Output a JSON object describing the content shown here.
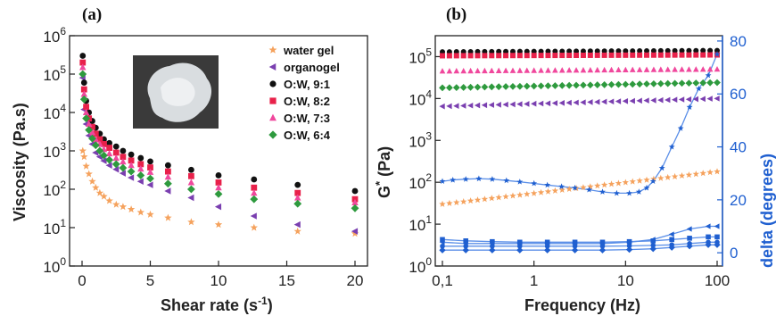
{
  "chart_data": [
    {
      "panel_label": "(a)",
      "type": "scatter",
      "xlabel": "Shear rate (s",
      "xlabel_sup": "-1",
      "xlabel_close": ")",
      "ylabel": "Viscosity (Pa.s)",
      "xlim": [
        0,
        20
      ],
      "ylim_log10": [
        0,
        6
      ],
      "yscale": "log",
      "x_ticks": [
        "0",
        "5",
        "10",
        "15",
        "20"
      ],
      "y_ticks": [
        {
          "base": "10",
          "exp": "0"
        },
        {
          "base": "10",
          "exp": "1"
        },
        {
          "base": "10",
          "exp": "2"
        },
        {
          "base": "10",
          "exp": "3"
        },
        {
          "base": "10",
          "exp": "4"
        },
        {
          "base": "10",
          "exp": "5"
        },
        {
          "base": "10",
          "exp": "6"
        }
      ],
      "legend_position": "top-right",
      "inset_photo": "gel-photo",
      "series": [
        {
          "name": "water gel",
          "color": "#f5a25d",
          "marker": "star",
          "x": [
            0.05,
            0.15,
            0.3,
            0.5,
            0.75,
            1.0,
            1.3,
            1.6,
            2.0,
            2.5,
            3.0,
            3.6,
            4.3,
            5.0,
            6.3,
            8.0,
            10.0,
            12.6,
            15.8,
            20.0
          ],
          "y": [
            1000,
            700,
            400,
            250,
            160,
            110,
            80,
            65,
            50,
            40,
            35,
            30,
            25,
            22,
            18,
            14,
            12,
            10,
            8,
            7
          ]
        },
        {
          "name": "organogel",
          "color": "#7a3fb0",
          "marker": "triangle-left",
          "x": [
            0.05,
            0.15,
            0.3,
            0.5,
            0.75,
            1.0,
            1.3,
            1.6,
            2.0,
            2.5,
            3.0,
            3.6,
            4.3,
            5.0,
            6.3,
            8.0,
            10.0,
            12.6,
            15.8,
            20.0
          ],
          "y": [
            80000,
            12000,
            5000,
            2500,
            1500,
            900,
            700,
            550,
            420,
            330,
            260,
            200,
            160,
            130,
            90,
            60,
            35,
            20,
            12,
            8
          ]
        },
        {
          "name": "O:W, 9:1",
          "color": "#111111",
          "marker": "circle",
          "x": [
            0.05,
            0.15,
            0.3,
            0.5,
            0.75,
            1.0,
            1.3,
            1.6,
            2.0,
            2.5,
            3.0,
            3.6,
            4.3,
            5.0,
            6.3,
            8.0,
            10.0,
            12.6,
            15.8,
            20.0
          ],
          "y": [
            300000,
            60000,
            20000,
            10000,
            6000,
            4000,
            2800,
            2000,
            1600,
            1300,
            1000,
            800,
            650,
            530,
            420,
            320,
            230,
            180,
            130,
            90
          ]
        },
        {
          "name": "O:W, 8:2",
          "color": "#e8214a",
          "marker": "square",
          "x": [
            0.05,
            0.15,
            0.3,
            0.5,
            0.75,
            1.0,
            1.3,
            1.6,
            2.0,
            2.5,
            3.0,
            3.6,
            4.3,
            5.0,
            6.3,
            8.0,
            10.0,
            12.6,
            15.8,
            20.0
          ],
          "y": [
            200000,
            40000,
            14000,
            7000,
            4200,
            2800,
            2000,
            1500,
            1200,
            900,
            700,
            560,
            450,
            370,
            290,
            220,
            150,
            110,
            80,
            55
          ]
        },
        {
          "name": "O:W, 7:3",
          "color": "#f0489d",
          "marker": "triangle-up",
          "x": [
            0.05,
            0.15,
            0.3,
            0.5,
            0.75,
            1.0,
            1.3,
            1.6,
            2.0,
            2.5,
            3.0,
            3.6,
            4.3,
            5.0,
            6.3,
            8.0,
            10.0,
            12.6,
            15.8,
            20.0
          ],
          "y": [
            150000,
            30000,
            10000,
            5000,
            3000,
            2000,
            1500,
            1100,
            850,
            650,
            520,
            420,
            340,
            280,
            210,
            150,
            110,
            80,
            60,
            45
          ]
        },
        {
          "name": "O:W, 6:4",
          "color": "#2e9a3e",
          "marker": "diamond",
          "x": [
            0.05,
            0.15,
            0.3,
            0.5,
            0.75,
            1.0,
            1.3,
            1.6,
            2.0,
            2.5,
            3.0,
            3.6,
            4.3,
            5.0,
            6.3,
            8.0,
            10.0,
            12.6,
            15.8,
            20.0
          ],
          "y": [
            100000,
            22000,
            7000,
            3500,
            2100,
            1400,
            1000,
            760,
            580,
            450,
            360,
            290,
            230,
            190,
            140,
            100,
            75,
            55,
            42,
            32
          ]
        }
      ]
    },
    {
      "panel_label": "(b)",
      "type": "scatter",
      "xlabel": "Frequency (Hz)",
      "ylabel": "G",
      "ylabel_sup": "*",
      "ylabel_unit": "(Pa)",
      "y2label": "delta (degrees)",
      "xscale": "log",
      "yscale": "log",
      "xlim": [
        0.1,
        100
      ],
      "ylim_log10": [
        0,
        5.5
      ],
      "y2lim": [
        -5,
        82
      ],
      "x_ticks": [
        "0,1",
        "1",
        "10",
        "100"
      ],
      "y_ticks": [
        {
          "base": "10",
          "exp": "0"
        },
        {
          "base": "10",
          "exp": "1"
        },
        {
          "base": "10",
          "exp": "2"
        },
        {
          "base": "10",
          "exp": "3"
        },
        {
          "base": "10",
          "exp": "4"
        },
        {
          "base": "10",
          "exp": "5"
        }
      ],
      "y2_ticks": [
        "0",
        "20",
        "40",
        "60",
        "80"
      ],
      "g_series": [
        {
          "color": "#111111",
          "marker": "circle",
          "value": 130000,
          "end": 140000
        },
        {
          "color": "#e8214a",
          "marker": "square",
          "value": 105000,
          "end": 110000
        },
        {
          "color": "#f0489d",
          "marker": "triangle-up",
          "value": 45000,
          "end": 50000
        },
        {
          "color": "#2e9a3e",
          "marker": "diamond",
          "value": 18000,
          "end": 24000
        },
        {
          "color": "#7a3fb0",
          "marker": "triangle-left",
          "value": 6500,
          "end": 10000
        },
        {
          "color": "#f5a25d",
          "marker": "star",
          "value": 30,
          "end": 180
        }
      ],
      "delta_series": [
        {
          "color": "#1f5fd0",
          "marker": "star",
          "x": [
            0.1,
            0.13,
            0.18,
            0.25,
            0.35,
            0.5,
            0.7,
            1.0,
            1.4,
            2.0,
            2.8,
            4.0,
            5.6,
            8.0,
            11,
            14,
            17,
            20,
            25,
            32,
            40,
            50,
            63,
            80,
            100
          ],
          "y": [
            27,
            27.5,
            27.8,
            28,
            27.8,
            27.3,
            26.8,
            26.2,
            25.6,
            25,
            24.5,
            23.8,
            23,
            22.5,
            22.5,
            23,
            24.5,
            27,
            32,
            40,
            47,
            55,
            62,
            67,
            75
          ]
        },
        {
          "color": "#1f5fd0",
          "marker": "triangle-left",
          "x": [
            0.1,
            0.18,
            0.35,
            0.7,
            1.4,
            2.8,
            5.6,
            11,
            20,
            32,
            50,
            80,
            100
          ],
          "y": [
            4,
            3.5,
            3.5,
            3.5,
            3.5,
            3.5,
            3.5,
            4,
            5,
            7,
            9,
            10,
            10
          ]
        },
        {
          "color": "#1f5fd0",
          "marker": "square",
          "x": [
            0.1,
            0.18,
            0.35,
            0.7,
            1.4,
            2.8,
            5.6,
            11,
            20,
            32,
            50,
            80,
            100
          ],
          "y": [
            5,
            4.5,
            4.2,
            4,
            4,
            4,
            4,
            4.2,
            4.5,
            5,
            5.5,
            6,
            6
          ]
        },
        {
          "color": "#1f5fd0",
          "marker": "circle",
          "x": [
            0.1,
            0.18,
            0.35,
            0.7,
            1.4,
            2.8,
            5.6,
            11,
            20,
            32,
            50,
            80,
            100
          ],
          "y": [
            2.5,
            2.5,
            2.5,
            2.5,
            2.5,
            2.5,
            2.5,
            2.6,
            2.8,
            3,
            3.5,
            4,
            4
          ]
        },
        {
          "color": "#1f5fd0",
          "marker": "diamond",
          "x": [
            0.1,
            0.18,
            0.35,
            0.7,
            1.4,
            2.8,
            5.6,
            11,
            20,
            32,
            50,
            80,
            100
          ],
          "y": [
            1,
            1,
            1,
            1,
            1,
            1,
            1,
            1.2,
            1.5,
            2,
            2.5,
            3,
            3
          ]
        }
      ]
    }
  ]
}
